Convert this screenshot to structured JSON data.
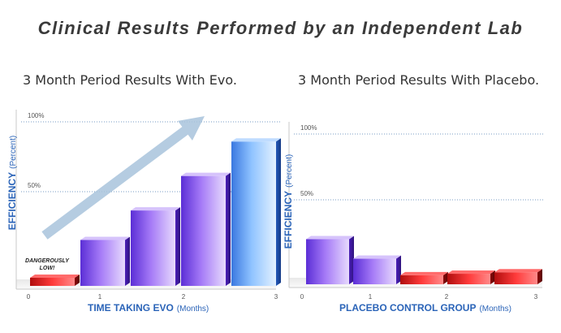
{
  "page_title": "Clinical Results Performed by an Independent Lab",
  "colors": {
    "axis_label": "#2b64b8",
    "bar_blue": "#6aa6f0",
    "bar_violet": "#9c5ff2",
    "bar_red": "#e02020",
    "arrow": "#a9c4dc"
  },
  "chart_data": [
    {
      "type": "bar",
      "title": "3 Month Period Results With Evo.",
      "ylabel_bold": "EFFICIENCY",
      "ylabel_paren": "(Percent)",
      "xlabel_bold": "TIME TAKING EVO",
      "xlabel_paren": "(Months)",
      "x_ticks": [
        "0",
        "1",
        "2",
        "3"
      ],
      "y_ticks": [
        "50%",
        "100%"
      ],
      "ylim": [
        0,
        100
      ],
      "values": [
        4,
        28,
        46,
        67,
        88
      ],
      "colors": [
        "red",
        "violet",
        "violet",
        "violet",
        "blue"
      ],
      "annotation": {
        "line1": "DANGEROUSLY",
        "line2": "LOW!"
      },
      "arrow": true,
      "grid": true
    },
    {
      "type": "bar",
      "title": "3 Month Period Results With Placebo.",
      "ylabel_bold": "EFFICIENCY",
      "ylabel_paren": "(Percent)",
      "xlabel_bold": "PLACEBO CONTROL GROUP",
      "xlabel_paren": "(Months)",
      "x_ticks": [
        "0",
        "1",
        "2",
        "3"
      ],
      "y_ticks": [
        "50%",
        "100%"
      ],
      "ylim": [
        0,
        100
      ],
      "values": [
        30,
        17,
        6,
        7,
        8
      ],
      "colors": [
        "violet",
        "violet",
        "red",
        "red",
        "red"
      ],
      "grid": true
    }
  ]
}
